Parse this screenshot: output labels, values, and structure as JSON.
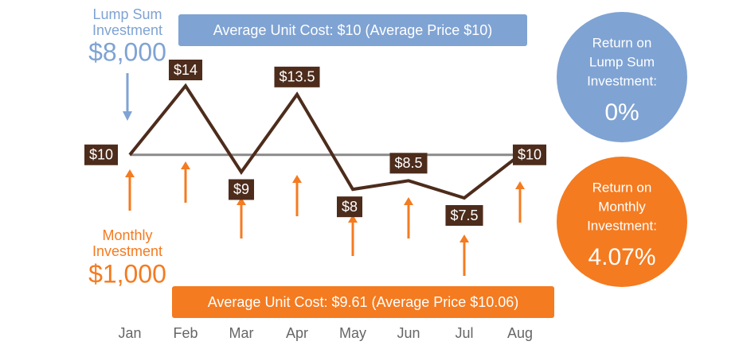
{
  "chart_data": {
    "type": "line",
    "categories": [
      "Jan",
      "Feb",
      "Mar",
      "Apr",
      "May",
      "Jun",
      "Jul",
      "Aug"
    ],
    "values": [
      10,
      14,
      9,
      13.5,
      8,
      8.5,
      7.5,
      10
    ],
    "value_labels": [
      "$10",
      "$14",
      "$9",
      "$13.5",
      "$8",
      "$8.5",
      "$7.5",
      "$10"
    ],
    "color": "#4d2c1c",
    "reference_color": "#8a8a8a",
    "lump_sum": {
      "label": [
        "Lump Sum",
        "Investment"
      ],
      "amount": "$8,000",
      "color": "#7fa3d3",
      "average": "Average Unit Cost: $10 (Average Price $10)",
      "return_label": [
        "Return on",
        "Lump Sum",
        "Investment:"
      ],
      "return": "0%"
    },
    "monthly": {
      "label": [
        "Monthly",
        "Investment"
      ],
      "amount": "$1,000",
      "color": "#f47b20",
      "average": "Average Unit Cost: $9.61 (Average Price $10.06)",
      "return_label": [
        "Return on",
        "Monthly",
        "Investment:"
      ],
      "return": "4.07%"
    }
  }
}
